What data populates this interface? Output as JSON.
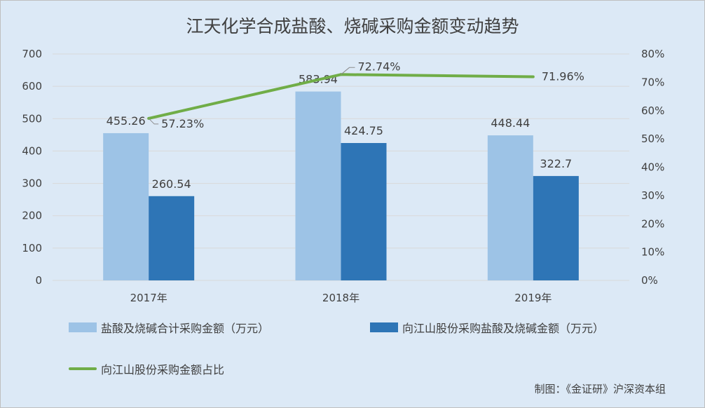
{
  "title": "江天化学合成盐酸、烧碱采购金额变动趋势",
  "source": "制图：《金证研》沪深资本组",
  "colors": {
    "background": "#dce9f6",
    "series_light": "#9dc3e6",
    "series_dark": "#2e75b6",
    "series_line": "#70ad47",
    "grid": "#d9d9d9",
    "text": "#404040"
  },
  "legend": {
    "bar1": "盐酸及烧碱合计采购金额（万元）",
    "bar2": "向江山股份采购盐酸及烧碱金额（万元）",
    "line": "向江山股份采购金额占比"
  },
  "chart_data": {
    "type": "bar",
    "categories": [
      "2017年",
      "2018年",
      "2019年"
    ],
    "series": [
      {
        "name": "盐酸及烧碱合计采购金额（万元）",
        "type": "bar",
        "axis": "left",
        "values": [
          455.26,
          583.94,
          448.44
        ],
        "labels": [
          "455.26",
          "583.94",
          "448.44"
        ]
      },
      {
        "name": "向江山股份采购盐酸及烧碱金额（万元）",
        "type": "bar",
        "axis": "left",
        "values": [
          260.54,
          424.75,
          322.7
        ],
        "labels": [
          "260.54",
          "424.75",
          "322.7"
        ]
      },
      {
        "name": "向江山股份采购金额占比",
        "type": "line",
        "axis": "right",
        "values": [
          57.23,
          72.74,
          71.96
        ],
        "labels": [
          "57.23%",
          "72.74%",
          "71.96%"
        ]
      }
    ],
    "y_left": {
      "min": 0,
      "max": 700,
      "ticks": [
        "0",
        "100",
        "200",
        "300",
        "400",
        "500",
        "600",
        "700"
      ]
    },
    "y_right": {
      "min": 0,
      "max": 80,
      "ticks": [
        "0%",
        "10%",
        "20%",
        "30%",
        "40%",
        "50%",
        "60%",
        "70%",
        "80%"
      ]
    },
    "grid": true,
    "legend_position": "bottom"
  }
}
